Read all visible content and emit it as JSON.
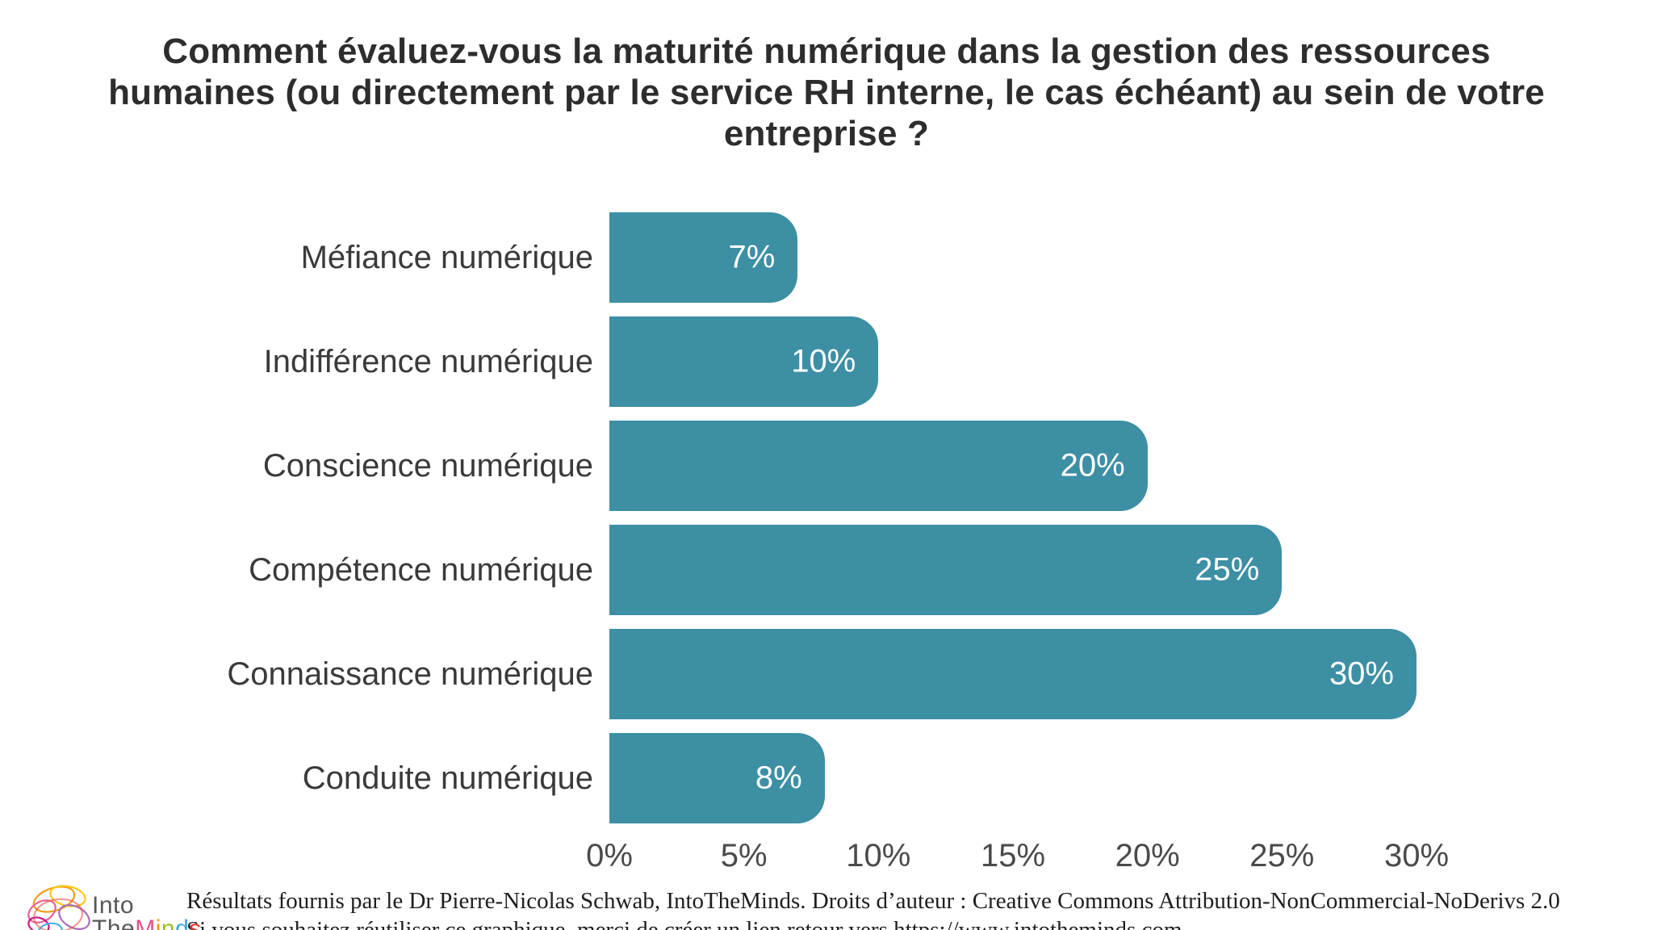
{
  "title": "Comment évaluez-vous la maturité numérique dans la gestion des ressources humaines (ou directement par le service RH interne, le cas échéant) au sein de votre entreprise ?",
  "chart_data": {
    "type": "bar",
    "orientation": "horizontal",
    "title": "Comment évaluez-vous la maturité numérique dans la gestion des ressources humaines (ou directement par le service RH interne, le cas échéant) au sein de votre entreprise ?",
    "categories": [
      "Méfiance numérique",
      "Indifférence numérique",
      "Conscience numérique",
      "Compétence numérique",
      "Connaissance numérique",
      "Conduite numérique"
    ],
    "values": [
      7,
      10,
      20,
      25,
      30,
      8
    ],
    "value_labels": [
      "7%",
      "10%",
      "20%",
      "25%",
      "30%",
      "8%"
    ],
    "x_tick_values": [
      0,
      5,
      10,
      15,
      20,
      25,
      30
    ],
    "x_tick_labels": [
      "0%",
      "5%",
      "10%",
      "15%",
      "20%",
      "25%",
      "30%"
    ],
    "xlim": [
      0,
      30
    ],
    "bar_color": "#3d8fa4",
    "value_label_color": "#ffffff",
    "grid": false,
    "legend": "none"
  },
  "footer": {
    "line1": "Résultats fournis par le Dr Pierre-Nicolas Schwab, IntoTheMinds. Droits d’auteur : Creative Commons Attribution-NonCommercial-NoDerivs 2.0",
    "line2": "Si vous souhaitez réutiliser ce graphique, merci de créer un lien retour vers https://www.intotheminds.com"
  },
  "logo": {
    "line1": "Into",
    "line2_gray": "The",
    "line2_letters": [
      {
        "ch": "M",
        "color": "#e5518d"
      },
      {
        "ch": "i",
        "color": "#f39200"
      },
      {
        "ch": "n",
        "color": "#95c11f"
      },
      {
        "ch": "d",
        "color": "#36a9e1"
      },
      {
        "ch": "s",
        "color": "#e6332a"
      }
    ]
  }
}
